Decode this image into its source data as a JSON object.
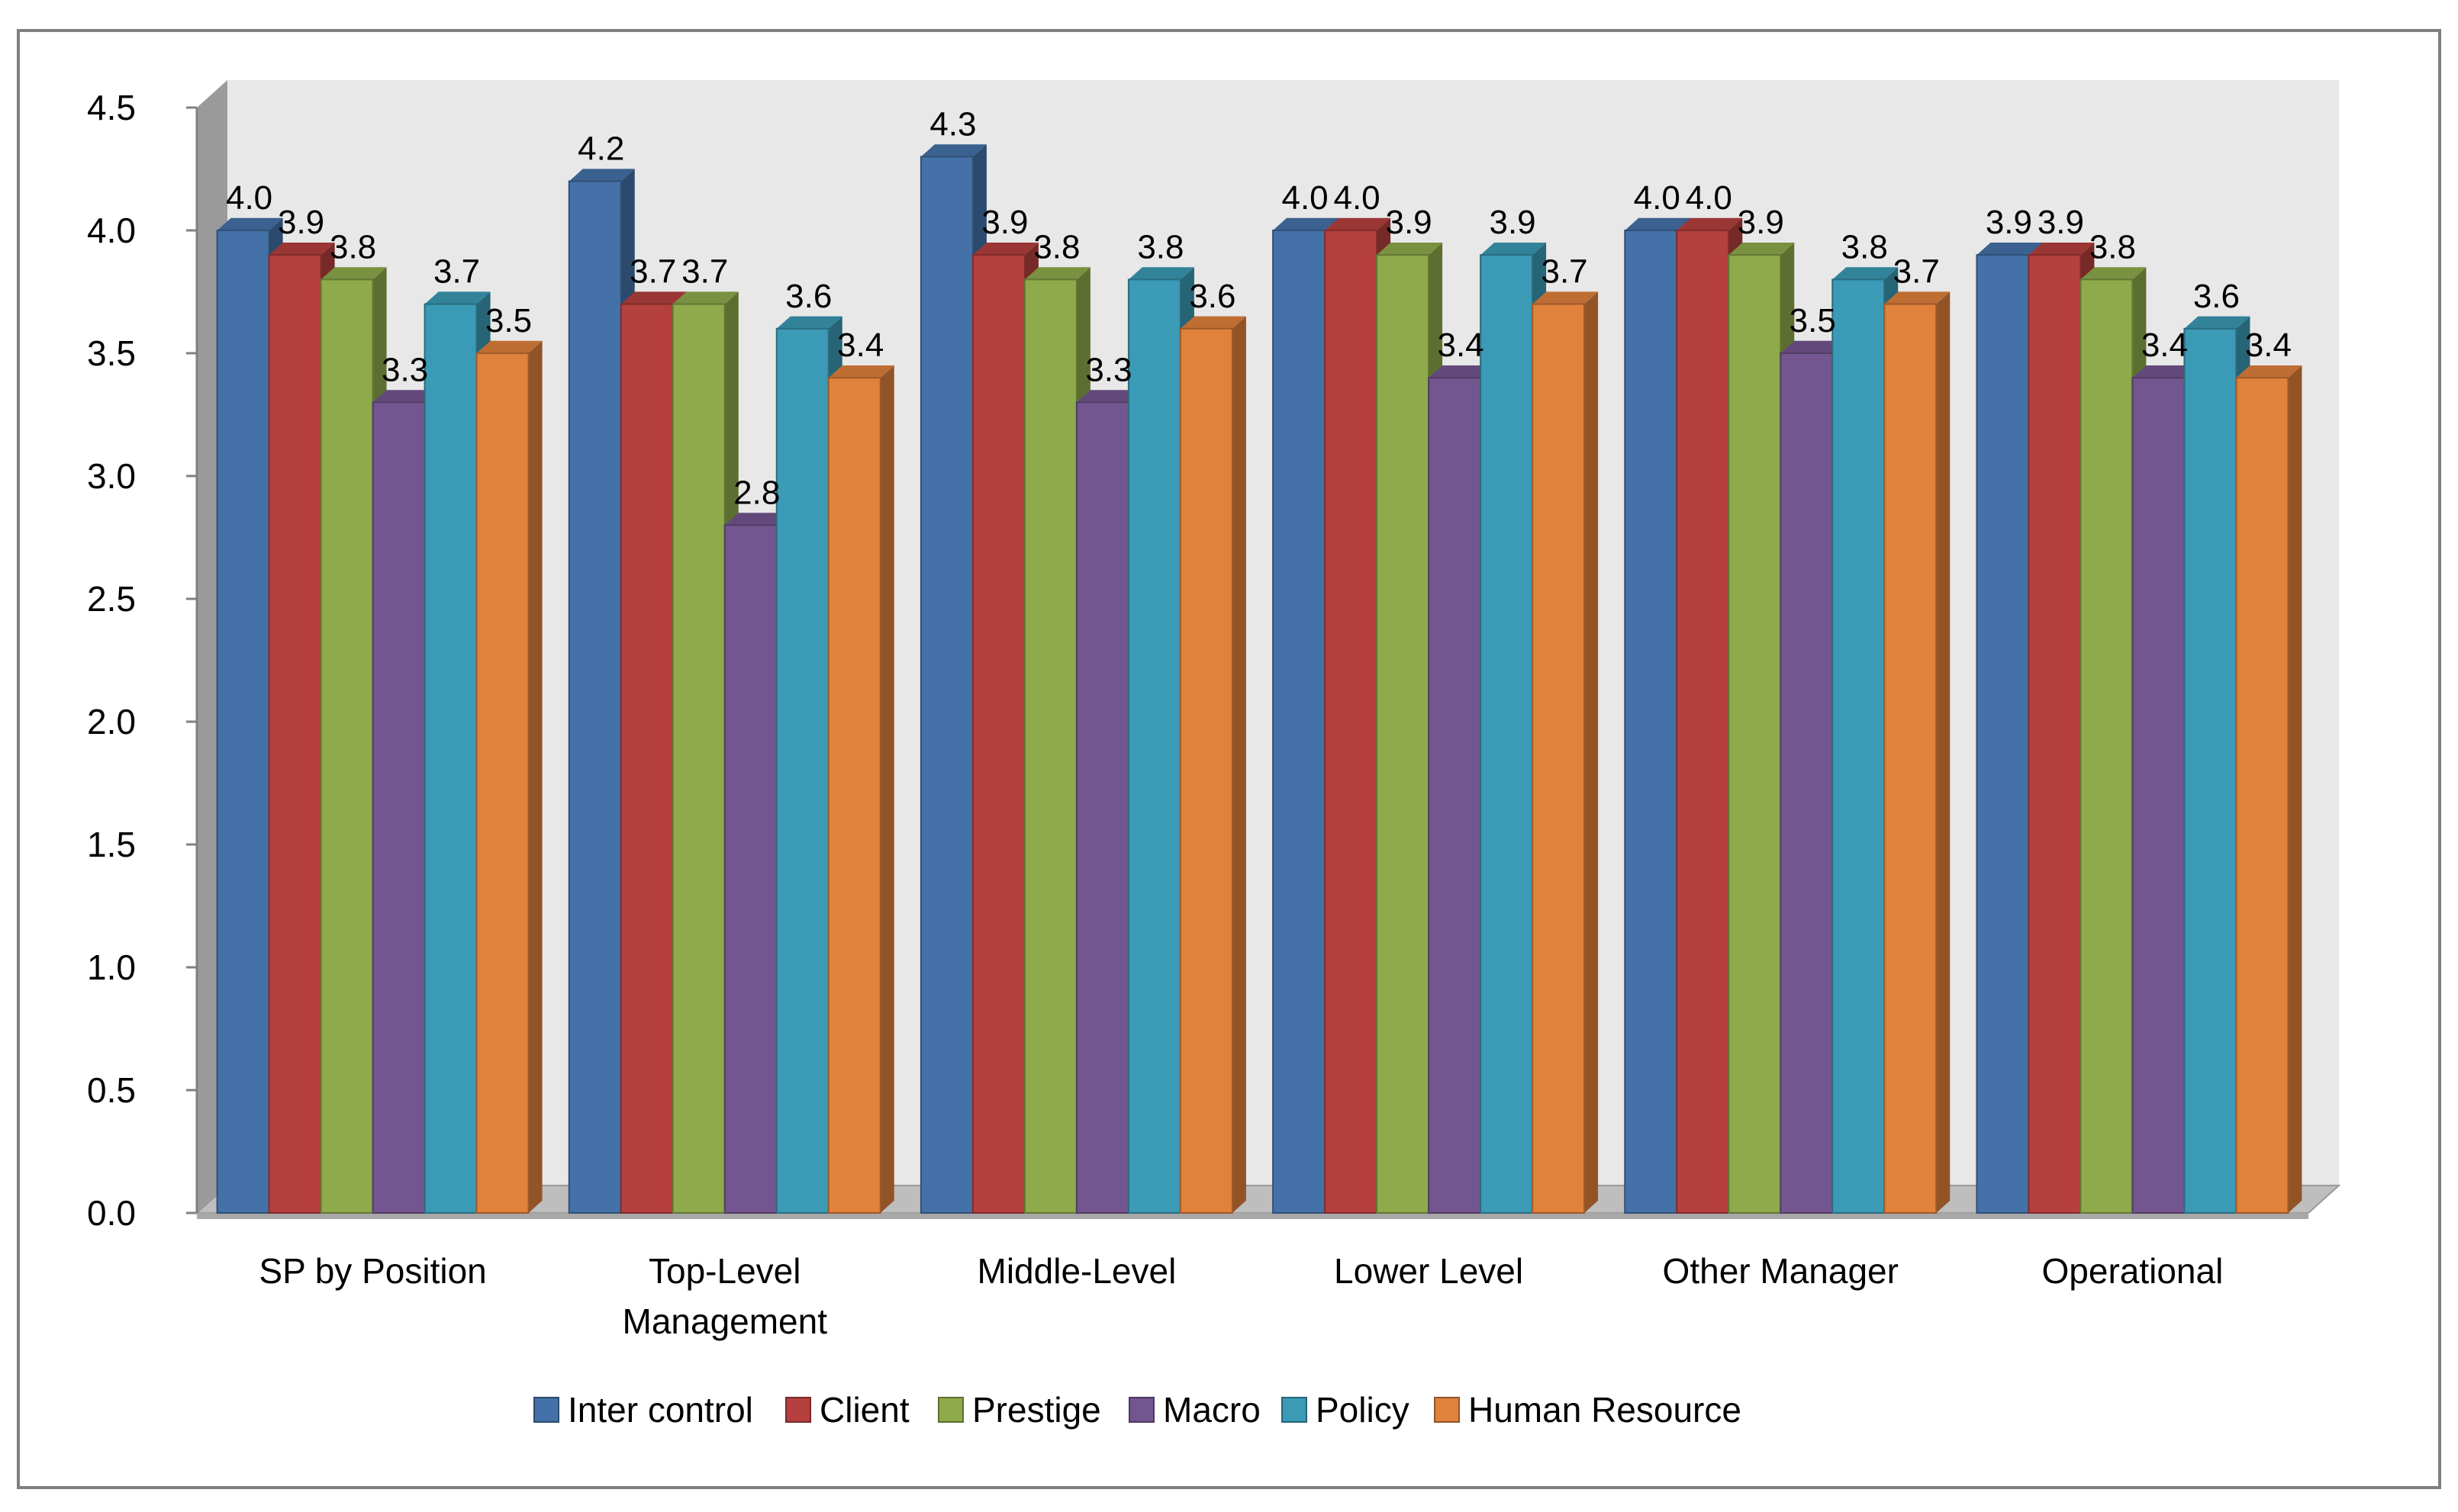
{
  "chart_data": {
    "type": "bar",
    "style": "3d-clustered-column",
    "title": "",
    "xlabel": "",
    "ylabel": "",
    "ylim": [
      0,
      4.5
    ],
    "ytick_step": 0.5,
    "yticks": [
      "0.0",
      "0.5",
      "1.0",
      "1.5",
      "2.0",
      "2.5",
      "3.0",
      "3.5",
      "4.0",
      "4.5"
    ],
    "grid": false,
    "legend_position": "bottom",
    "categories": [
      [
        "SP by Position"
      ],
      [
        "Top-Level",
        "Management"
      ],
      [
        "Middle-Level"
      ],
      [
        "Lower Level"
      ],
      [
        "Other Manager"
      ],
      [
        "Operational"
      ]
    ],
    "series": [
      {
        "name": "Inter control",
        "color": "#4472A8",
        "values": [
          4.0,
          4.2,
          4.3,
          4.0,
          4.0,
          3.9
        ],
        "labels": [
          "4.0",
          "4.2",
          "4.3",
          "4.0",
          "4.0",
          "3.9"
        ]
      },
      {
        "name": "Client",
        "color": "#B5403D",
        "values": [
          3.9,
          3.7,
          3.9,
          4.0,
          4.0,
          3.9
        ],
        "labels": [
          "3.9",
          "3.7",
          "3.9",
          "4.0",
          "4.0",
          "3.9"
        ]
      },
      {
        "name": "Prestige",
        "color": "#8EAA4B",
        "values": [
          3.8,
          3.7,
          3.8,
          3.9,
          3.9,
          3.8
        ],
        "labels": [
          "3.8",
          "3.7",
          "3.8",
          "3.9",
          "3.9",
          "3.8"
        ]
      },
      {
        "name": "Macro",
        "color": "#735690",
        "values": [
          3.3,
          2.8,
          3.3,
          3.4,
          3.5,
          3.4
        ],
        "labels": [
          "3.3",
          "2.8",
          "3.3",
          "3.4",
          "3.5",
          "3.4"
        ]
      },
      {
        "name": "Policy",
        "color": "#3B9AB5",
        "values": [
          3.7,
          3.6,
          3.8,
          3.9,
          3.8,
          3.6
        ],
        "labels": [
          "3.7",
          "3.6",
          "3.8",
          "3.9",
          "3.8",
          "3.6"
        ]
      },
      {
        "name": "Human Resource",
        "color": "#E0813C",
        "values": [
          3.5,
          3.4,
          3.6,
          3.7,
          3.7,
          3.4
        ],
        "labels": [
          "3.5",
          "3.4",
          "3.6",
          "3.7",
          "3.7",
          "3.4"
        ]
      }
    ]
  }
}
